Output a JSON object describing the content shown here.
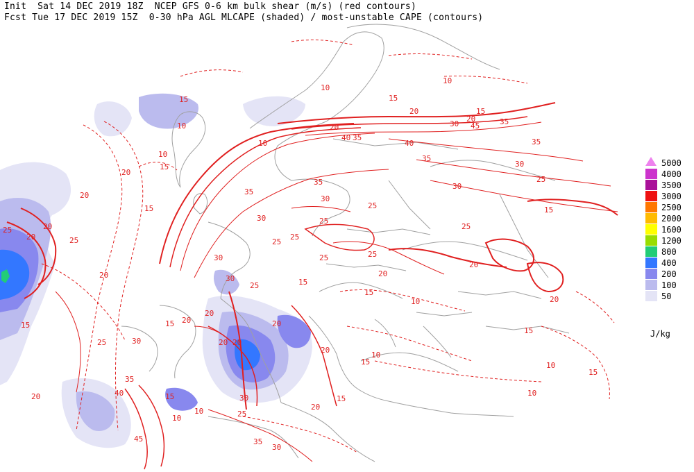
{
  "header": {
    "line1": "Init  Sat 14 DEC 2019 18Z  NCEP GFS 0-6 km bulk shear (m/s) (red contours)",
    "line2": "Fcst Tue 17 DEC 2019 15Z  0-30 hPa AGL MLCAPE (shaded) / most-unstable CAPE (contours)"
  },
  "legend": {
    "unit": "J/kg",
    "levels": [
      {
        "label": "5000",
        "color": "#ff66ff"
      },
      {
        "label": "4000",
        "color": "#cc33cc"
      },
      {
        "label": "3500",
        "color": "#aa1199"
      },
      {
        "label": "3000",
        "color": "#ee1111"
      },
      {
        "label": "2500",
        "color": "#ff7700"
      },
      {
        "label": "2000",
        "color": "#ffbb00"
      },
      {
        "label": "1600",
        "color": "#ffff00"
      },
      {
        "label": "1200",
        "color": "#99dd00"
      },
      {
        "label": "800",
        "color": "#22cc77"
      },
      {
        "label": "400",
        "color": "#3377ff"
      },
      {
        "label": "200",
        "color": "#8888ee"
      },
      {
        "label": "100",
        "color": "#bbbbee"
      },
      {
        "label": "50",
        "color": "#e4e4f6"
      }
    ]
  },
  "map": {
    "coastline_color": "#a0a0a0",
    "contour_color": "#e02020",
    "contour_labels": [
      "10",
      "15",
      "20",
      "25",
      "30",
      "35",
      "40",
      "45"
    ]
  }
}
